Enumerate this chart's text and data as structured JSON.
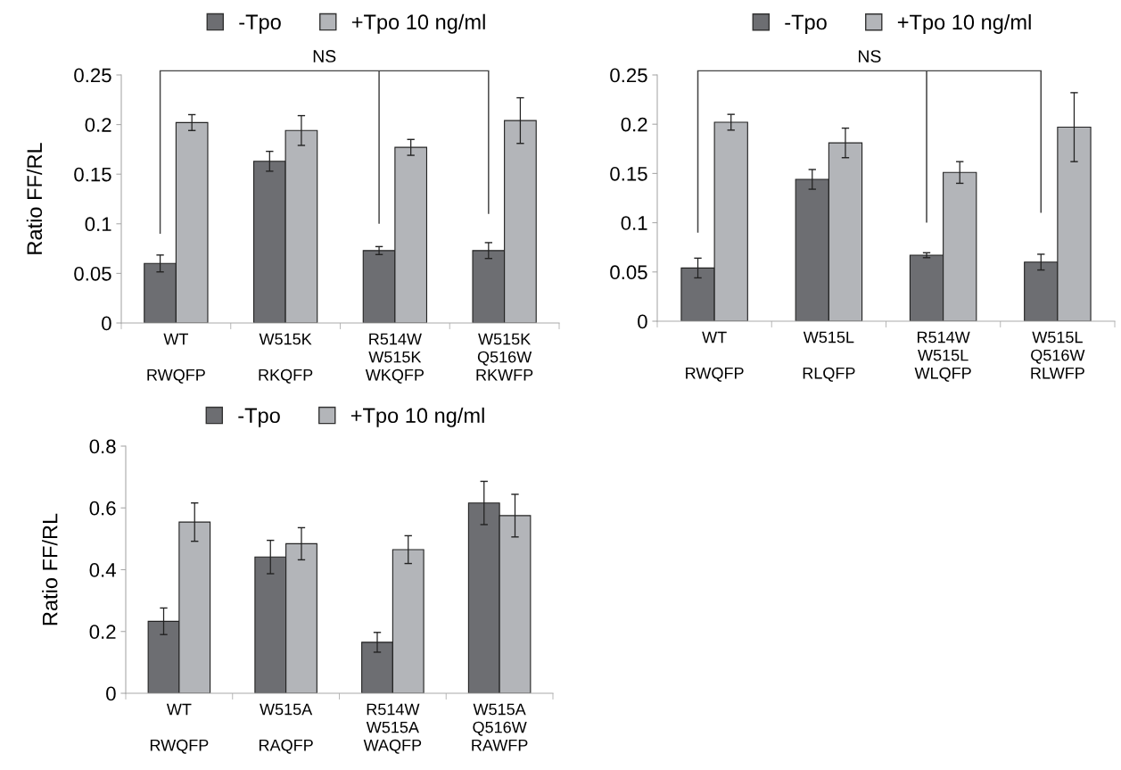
{
  "chart_data": [
    {
      "type": "bar",
      "ylabel": "Ratio FF/RL",
      "categories": [
        "WT\n\nRWQFP",
        "W515K\n\nRKQFP",
        "R514W\nW515K\nWKQFP",
        "W515K\nQ516W\nRKWFP"
      ],
      "series": [
        {
          "name": "-Tpo",
          "color": "#6d6e72",
          "values": [
            0.06,
            0.163,
            0.073,
            0.073
          ],
          "errors": [
            0.0085,
            0.01,
            0.004,
            0.008
          ]
        },
        {
          "name": "+Tpo 10 ng/ml",
          "color": "#b3b5b9",
          "values": [
            0.202,
            0.194,
            0.177,
            0.204
          ],
          "errors": [
            0.008,
            0.015,
            0.008,
            0.023
          ]
        }
      ],
      "ylim": [
        0,
        0.25
      ],
      "yticks": [
        0,
        0.05,
        0.1,
        0.15,
        0.2,
        0.25
      ],
      "legend": "top",
      "grid": false,
      "annotations": [
        "NS"
      ]
    },
    {
      "type": "bar",
      "categories": [
        "WT\n\nRWQFP",
        "W515L\n\nRLQFP",
        "R514W\nW515L\nWLQFP",
        "W515L\nQ516W\nRLWFP"
      ],
      "series": [
        {
          "name": "-Tpo",
          "color": "#6d6e72",
          "values": [
            0.054,
            0.144,
            0.067,
            0.06
          ],
          "errors": [
            0.01,
            0.01,
            0.0025,
            0.008
          ]
        },
        {
          "name": "+Tpo 10 ng/ml",
          "color": "#b3b5b9",
          "values": [
            0.202,
            0.181,
            0.151,
            0.197
          ],
          "errors": [
            0.008,
            0.015,
            0.011,
            0.035
          ]
        }
      ],
      "ylim": [
        0,
        0.25
      ],
      "yticks": [
        0,
        0.05,
        0.1,
        0.15,
        0.2,
        0.25
      ],
      "legend": "top",
      "grid": false,
      "annotations": [
        "NS"
      ]
    },
    {
      "type": "bar",
      "ylabel": "Ratio FF/RL",
      "categories": [
        "WT\n\nRWQFP",
        "W515A\n\nRAQFP",
        "R514W\nW515A\nWAQFP",
        "W515A\nQ516W\nRAWFP"
      ],
      "series": [
        {
          "name": "-Tpo",
          "color": "#6d6e72",
          "values": [
            0.233,
            0.441,
            0.165,
            0.616
          ],
          "errors": [
            0.043,
            0.054,
            0.032,
            0.07
          ]
        },
        {
          "name": "+Tpo 10 ng/ml",
          "color": "#b3b5b9",
          "values": [
            0.554,
            0.484,
            0.465,
            0.575
          ],
          "errors": [
            0.062,
            0.052,
            0.045,
            0.069
          ]
        }
      ],
      "ylim": [
        0,
        0.8
      ],
      "yticks": [
        0,
        0.2,
        0.4,
        0.6,
        0.8
      ],
      "legend": "top",
      "grid": false
    }
  ]
}
